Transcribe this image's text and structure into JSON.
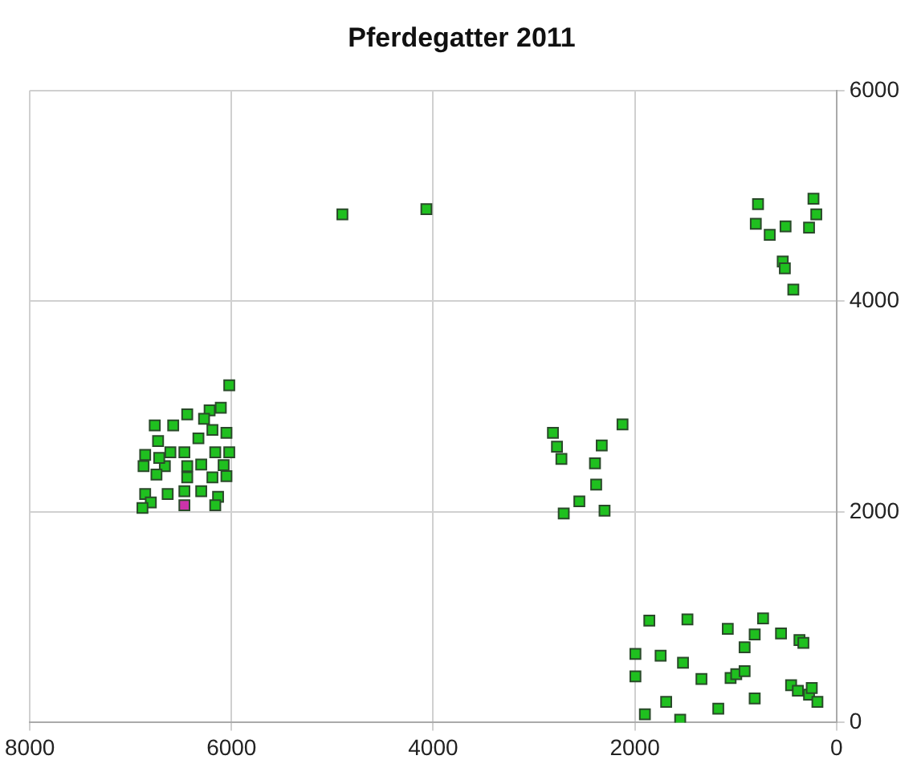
{
  "chart_data": {
    "type": "scatter",
    "title": "Pferdegatter 2011",
    "xlim": [
      8000,
      0
    ],
    "xticks": [
      8000,
      6000,
      4000,
      2000,
      0
    ],
    "ylim": [
      0,
      6000
    ],
    "yticks": [
      0,
      2000,
      4000,
      6000
    ],
    "grid": true,
    "legend": false,
    "marker": "square",
    "series": [
      {
        "color": "#1fc01f",
        "x": [
          4900,
          4067,
          778,
          800,
          662,
          505,
          228,
          200,
          272,
          533,
          512,
          428,
          2812,
          2772,
          2728,
          2328,
          2395,
          2383,
          2550,
          2705,
          2300,
          2122,
          1856,
          1478,
          1078,
          728,
          811,
          911,
          550,
          367,
          328,
          1994,
          1744,
          1522,
          1994,
          1339,
          1050,
          994,
          911,
          450,
          383,
          272,
          189,
          245,
          811,
          1689,
          1172,
          1900,
          1550,
          6022,
          6439,
          6217,
          6106,
          6272,
          6578,
          6761,
          6050,
          6189,
          6328,
          6728,
          6022,
          6161,
          6467,
          6606,
          6856,
          6078,
          6300,
          6439,
          6661,
          6872,
          6050,
          6189,
          6439,
          6744,
          6300,
          6467,
          6633,
          6856,
          6133,
          6717,
          6161,
          6800,
          6883
        ],
        "values": [
          4825,
          4873,
          4921,
          4735,
          4630,
          4710,
          4973,
          4825,
          4698,
          4376,
          4312,
          4111,
          2751,
          2619,
          2503,
          2630,
          2460,
          2259,
          2100,
          1984,
          2011,
          2830,
          968,
          979,
          889,
          989,
          836,
          714,
          846,
          783,
          757,
          651,
          635,
          567,
          439,
          413,
          423,
          460,
          487,
          354,
          302,
          265,
          196,
          328,
          228,
          196,
          132,
          79,
          27,
          3201,
          2925,
          2963,
          2989,
          2884,
          2821,
          2821,
          2751,
          2778,
          2698,
          2672,
          2566,
          2566,
          2566,
          2566,
          2540,
          2444,
          2449,
          2434,
          2434,
          2434,
          2339,
          2328,
          2328,
          2354,
          2196,
          2196,
          2170,
          2170,
          2143,
          2513,
          2063,
          2090,
          2037
        ]
      },
      {
        "color": "#cc33aa",
        "x": [
          6467
        ],
        "values": [
          2063
        ]
      }
    ]
  }
}
